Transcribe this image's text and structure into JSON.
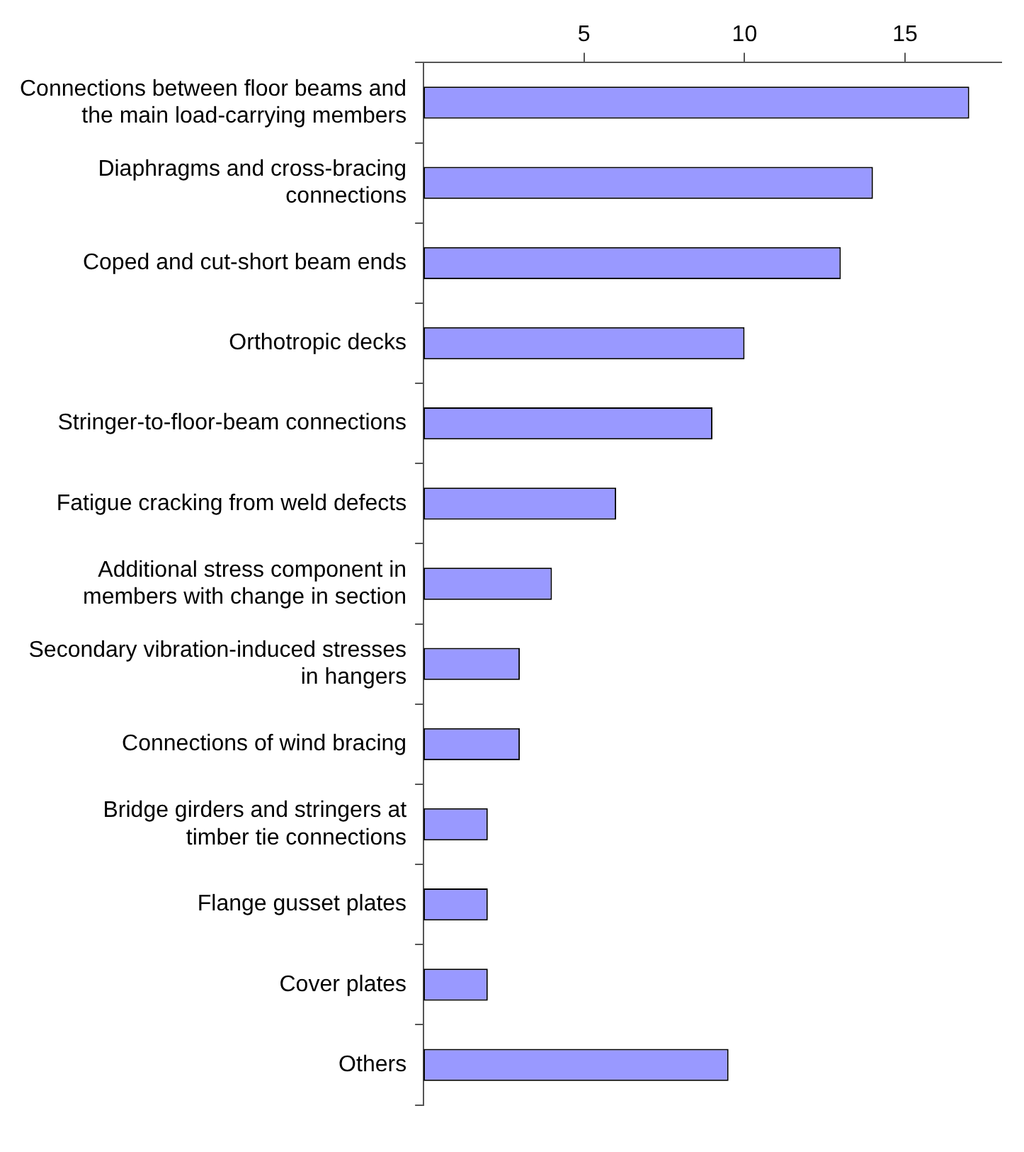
{
  "chart_data": {
    "type": "bar",
    "orientation": "horizontal",
    "categories": [
      "Connections between floor beams and the main load-carrying members",
      "Diaphragms and cross-bracing connections",
      "Coped and cut-short beam ends",
      "Orthotropic decks",
      "Stringer-to-floor-beam connections",
      "Fatigue cracking from weld defects",
      "Additional stress component in members with change in section",
      "Secondary vibration-induced stresses in hangers",
      "Connections of wind bracing",
      "Bridge girders and stringers at timber tie connections",
      "Flange gusset plates",
      "Cover plates",
      "Others"
    ],
    "values": [
      17,
      14,
      13,
      10,
      9,
      6,
      4,
      3,
      3,
      2,
      2,
      2,
      9.5
    ],
    "color": "#9999ff",
    "xlim": [
      0,
      18
    ],
    "xticks": [
      5,
      10,
      15
    ],
    "grid": false,
    "legend": false
  }
}
